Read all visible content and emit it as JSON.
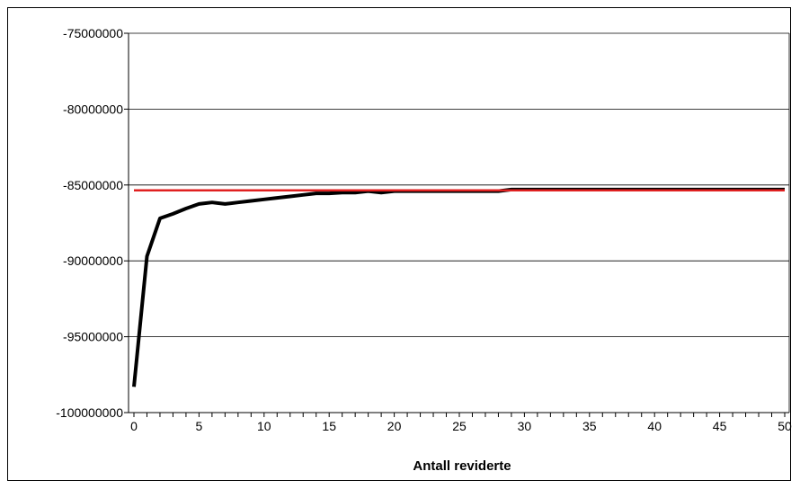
{
  "chart_data": {
    "type": "line",
    "title": "",
    "xlabel": "Antall reviderte",
    "ylabel": "",
    "xlim": [
      0,
      50
    ],
    "ylim": [
      -100000000,
      -75000000
    ],
    "x_ticks": [
      "0",
      "5",
      "10",
      "15",
      "20",
      "25",
      "30",
      "35",
      "40",
      "45",
      "50"
    ],
    "y_ticks": [
      "-75000000",
      "-80000000",
      "-85000000",
      "-90000000",
      "-95000000",
      "-100000000"
    ],
    "grid": "horizontal",
    "legend": "none",
    "series": [
      {
        "color": "#000000",
        "x": [
          0,
          1,
          2,
          3,
          4,
          5,
          6,
          7,
          8,
          9,
          10,
          11,
          12,
          13,
          14,
          15,
          16,
          17,
          18,
          19,
          20,
          21,
          22,
          23,
          24,
          25,
          26,
          27,
          28,
          29,
          30,
          35,
          40,
          45,
          50
        ],
        "y": [
          -98300000,
          -89700000,
          -87200000,
          -86900000,
          -86550000,
          -86250000,
          -86150000,
          -86250000,
          -86150000,
          -86050000,
          -85950000,
          -85850000,
          -85750000,
          -85650000,
          -85550000,
          -85550000,
          -85500000,
          -85500000,
          -85400000,
          -85500000,
          -85400000,
          -85400000,
          -85400000,
          -85400000,
          -85400000,
          -85400000,
          -85400000,
          -85400000,
          -85400000,
          -85300000,
          -85300000,
          -85300000,
          -85300000,
          -85300000,
          -85300000
        ]
      },
      {
        "color": "#e02020",
        "x": [
          0,
          50
        ],
        "y": [
          -85350000,
          -85350000
        ]
      }
    ]
  }
}
